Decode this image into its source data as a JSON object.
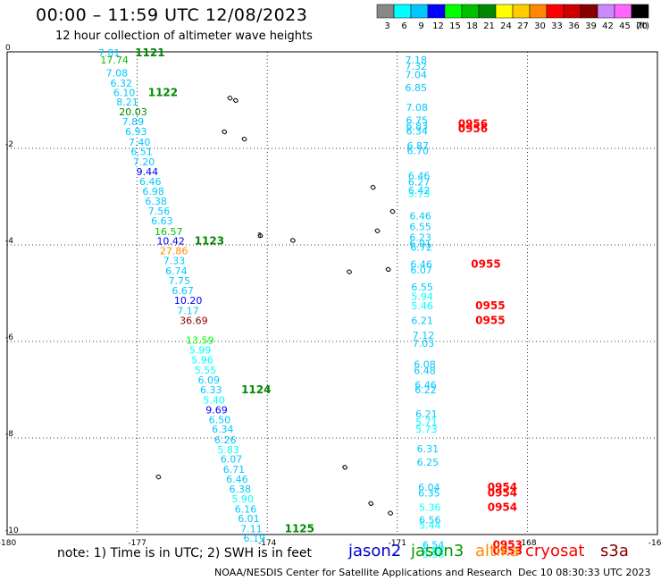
{
  "header": {
    "title": "00:00 – 11:59 UTC 12/08/2023",
    "subtitle": "12 hour collection of altimeter wave heights"
  },
  "legend": {
    "unit": "(ft)",
    "bins": [
      {
        "label": "3",
        "color": "#888888"
      },
      {
        "label": "6",
        "color": "#00ffff"
      },
      {
        "label": "9",
        "color": "#00c8ff"
      },
      {
        "label": "12",
        "color": "#0000ff"
      },
      {
        "label": "15",
        "color": "#00ff00"
      },
      {
        "label": "18",
        "color": "#00c000"
      },
      {
        "label": "21",
        "color": "#008800"
      },
      {
        "label": "24",
        "color": "#ffff00"
      },
      {
        "label": "27",
        "color": "#ffcc00"
      },
      {
        "label": "30",
        "color": "#ff8800"
      },
      {
        "label": "33",
        "color": "#ff0000"
      },
      {
        "label": "36",
        "color": "#cc0000"
      },
      {
        "label": "39",
        "color": "#880000"
      },
      {
        "label": "42",
        "color": "#cc88ff"
      },
      {
        "label": "45",
        "color": "#ff66ff"
      },
      {
        "label": "70",
        "color": "#000000"
      }
    ]
  },
  "axes": {
    "lon_ticks": [
      "-180",
      "-177",
      "-174",
      "-171",
      "-168",
      "-165"
    ],
    "lat_ticks": [
      "0",
      "-2",
      "-4",
      "-6",
      "-8",
      "-10"
    ]
  },
  "tracks": [
    {
      "name": "west",
      "points": [
        {
          "lat": -0.0,
          "lon": -177.9,
          "swh": "7.81"
        },
        {
          "lat": -0.15,
          "lon": -177.85,
          "swh": "17.74"
        },
        {
          "lat": -0.42,
          "lon": -177.72,
          "swh": "7.08"
        },
        {
          "lat": -0.63,
          "lon": -177.62,
          "swh": "6.32"
        },
        {
          "lat": -0.82,
          "lon": -177.55,
          "swh": "6.10"
        },
        {
          "lat": -1.02,
          "lon": -177.48,
          "swh": "8.21"
        },
        {
          "lat": -1.22,
          "lon": -177.42,
          "swh": "20.03"
        },
        {
          "lat": -1.43,
          "lon": -177.35,
          "swh": "7.89"
        },
        {
          "lat": -1.63,
          "lon": -177.28,
          "swh": "6.93"
        },
        {
          "lat": -1.85,
          "lon": -177.2,
          "swh": "7.40"
        },
        {
          "lat": -2.05,
          "lon": -177.15,
          "swh": "6.51"
        },
        {
          "lat": -2.26,
          "lon": -177.1,
          "swh": "7.20"
        },
        {
          "lat": -2.46,
          "lon": -177.02,
          "swh": "9.44"
        },
        {
          "lat": -2.67,
          "lon": -176.95,
          "swh": "6.46"
        },
        {
          "lat": -2.87,
          "lon": -176.88,
          "swh": "6.98"
        },
        {
          "lat": -3.07,
          "lon": -176.82,
          "swh": "6.38"
        },
        {
          "lat": -3.28,
          "lon": -176.75,
          "swh": "7.56"
        },
        {
          "lat": -3.48,
          "lon": -176.68,
          "swh": "6.63"
        },
        {
          "lat": -3.7,
          "lon": -176.6,
          "swh": "16.57"
        },
        {
          "lat": -3.9,
          "lon": -176.55,
          "swh": "10.42"
        },
        {
          "lat": -4.1,
          "lon": -176.48,
          "swh": "27.86"
        },
        {
          "lat": -4.31,
          "lon": -176.4,
          "swh": "7.33"
        },
        {
          "lat": -4.52,
          "lon": -176.35,
          "swh": "6.74"
        },
        {
          "lat": -4.72,
          "lon": -176.28,
          "swh": "7.75"
        },
        {
          "lat": -4.93,
          "lon": -176.2,
          "swh": "6.67"
        },
        {
          "lat": -5.13,
          "lon": -176.15,
          "swh": "10.20"
        },
        {
          "lat": -5.34,
          "lon": -176.08,
          "swh": "7.17"
        },
        {
          "lat": -5.55,
          "lon": -176.02,
          "swh": "36.69"
        },
        {
          "lat": -5.95,
          "lon": -175.88,
          "swh": "13.59"
        },
        {
          "lat": -6.16,
          "lon": -175.8,
          "swh": "5.99"
        },
        {
          "lat": -6.36,
          "lon": -175.75,
          "swh": "5.96"
        },
        {
          "lat": -6.57,
          "lon": -175.68,
          "swh": "5.55"
        },
        {
          "lat": -6.78,
          "lon": -175.6,
          "swh": "6.09"
        },
        {
          "lat": -6.98,
          "lon": -175.55,
          "swh": "6.33"
        },
        {
          "lat": -7.19,
          "lon": -175.48,
          "swh": "5.40"
        },
        {
          "lat": -7.4,
          "lon": -175.42,
          "swh": "9.69"
        },
        {
          "lat": -7.6,
          "lon": -175.35,
          "swh": "6.50"
        },
        {
          "lat": -7.8,
          "lon": -175.28,
          "swh": "6.34"
        },
        {
          "lat": -8.02,
          "lon": -175.22,
          "swh": "6.26"
        },
        {
          "lat": -8.22,
          "lon": -175.15,
          "swh": "5.83"
        },
        {
          "lat": -8.42,
          "lon": -175.08,
          "swh": "6.07"
        },
        {
          "lat": -8.63,
          "lon": -175.02,
          "swh": "6.71"
        },
        {
          "lat": -8.83,
          "lon": -174.95,
          "swh": "6.46"
        },
        {
          "lat": -9.04,
          "lon": -174.88,
          "swh": "6.38"
        },
        {
          "lat": -9.24,
          "lon": -174.82,
          "swh": "5.90"
        },
        {
          "lat": -9.45,
          "lon": -174.75,
          "swh": "6.16"
        },
        {
          "lat": -9.65,
          "lon": -174.68,
          "swh": "6.01"
        },
        {
          "lat": -9.86,
          "lon": -174.62,
          "swh": "7.11"
        },
        {
          "lat": -10.06,
          "lon": -174.55,
          "swh": "6.19"
        }
      ]
    },
    {
      "name": "east",
      "points": [
        {
          "lat": -0.15,
          "lon": -170.82,
          "swh": "7.18"
        },
        {
          "lat": -0.28,
          "lon": -170.82,
          "swh": "7.32"
        },
        {
          "lat": -0.45,
          "lon": -170.82,
          "swh": "7.04"
        },
        {
          "lat": -0.72,
          "lon": -170.82,
          "swh": "6.85"
        },
        {
          "lat": -1.13,
          "lon": -170.8,
          "swh": "7.08"
        },
        {
          "lat": -1.4,
          "lon": -170.8,
          "swh": "6.75"
        },
        {
          "lat": -1.52,
          "lon": -170.8,
          "swh": "6.83"
        },
        {
          "lat": -1.62,
          "lon": -170.8,
          "swh": "6.34"
        },
        {
          "lat": -1.93,
          "lon": -170.78,
          "swh": "6.87"
        },
        {
          "lat": -2.03,
          "lon": -170.78,
          "swh": "6.70"
        },
        {
          "lat": -2.55,
          "lon": -170.75,
          "swh": "6.46"
        },
        {
          "lat": -2.68,
          "lon": -170.75,
          "swh": "6.27"
        },
        {
          "lat": -2.85,
          "lon": -170.75,
          "swh": "6.42"
        },
        {
          "lat": -2.92,
          "lon": -170.75,
          "swh": "5.73"
        },
        {
          "lat": -3.38,
          "lon": -170.72,
          "swh": "6.46"
        },
        {
          "lat": -3.6,
          "lon": -170.72,
          "swh": "6.55"
        },
        {
          "lat": -3.82,
          "lon": -170.72,
          "swh": "6.23"
        },
        {
          "lat": -3.95,
          "lon": -170.72,
          "swh": "6.01"
        },
        {
          "lat": -4.03,
          "lon": -170.7,
          "swh": "6.72"
        },
        {
          "lat": -4.38,
          "lon": -170.7,
          "swh": "6.46"
        },
        {
          "lat": -4.5,
          "lon": -170.7,
          "swh": "6.07"
        },
        {
          "lat": -4.85,
          "lon": -170.68,
          "swh": "6.55"
        },
        {
          "lat": -5.05,
          "lon": -170.68,
          "swh": "5.94"
        },
        {
          "lat": -5.24,
          "lon": -170.68,
          "swh": "5.46"
        },
        {
          "lat": -5.55,
          "lon": -170.68,
          "swh": "6.21"
        },
        {
          "lat": -5.85,
          "lon": -170.65,
          "swh": "7.12"
        },
        {
          "lat": -6.02,
          "lon": -170.65,
          "swh": "7.03"
        },
        {
          "lat": -6.45,
          "lon": -170.62,
          "swh": "6.08"
        },
        {
          "lat": -6.58,
          "lon": -170.62,
          "swh": "6.48"
        },
        {
          "lat": -6.88,
          "lon": -170.6,
          "swh": "6.46"
        },
        {
          "lat": -6.98,
          "lon": -170.6,
          "swh": "6.22"
        },
        {
          "lat": -7.48,
          "lon": -170.58,
          "swh": "6.21"
        },
        {
          "lat": -7.65,
          "lon": -170.58,
          "swh": "5.71"
        },
        {
          "lat": -7.8,
          "lon": -170.58,
          "swh": "5.73"
        },
        {
          "lat": -8.2,
          "lon": -170.55,
          "swh": "6.31"
        },
        {
          "lat": -8.48,
          "lon": -170.55,
          "swh": "6.25"
        },
        {
          "lat": -9.0,
          "lon": -170.52,
          "swh": "6.04"
        },
        {
          "lat": -9.12,
          "lon": -170.52,
          "swh": "6.35"
        },
        {
          "lat": -9.42,
          "lon": -170.5,
          "swh": "5.36"
        },
        {
          "lat": -9.68,
          "lon": -170.5,
          "swh": "6.56"
        },
        {
          "lat": -9.79,
          "lon": -170.5,
          "swh": "5.44"
        },
        {
          "lat": -10.19,
          "lon": -170.42,
          "swh": "6.54"
        },
        {
          "lat": -10.29,
          "lon": -170.42,
          "swh": "5.60"
        },
        {
          "lat": -10.39,
          "lon": -170.42,
          "swh": "5.96"
        }
      ]
    }
  ],
  "pass_times": [
    {
      "lat": -0.0,
      "lon": -177.05,
      "text": "1121",
      "color": "#008800"
    },
    {
      "lat": -0.82,
      "lon": -176.75,
      "text": "1122",
      "color": "#008800"
    },
    {
      "lat": -3.9,
      "lon": -175.68,
      "text": "1123",
      "color": "#008800"
    },
    {
      "lat": -6.98,
      "lon": -174.6,
      "text": "1124",
      "color": "#008800"
    },
    {
      "lat": -9.86,
      "lon": -173.6,
      "text": "1125",
      "color": "#008800"
    },
    {
      "lat": -1.47,
      "lon": -169.6,
      "text": "0956",
      "color": "#ff0000"
    },
    {
      "lat": -1.57,
      "lon": -169.6,
      "text": "0956",
      "color": "#ff0000"
    },
    {
      "lat": -4.38,
      "lon": -169.3,
      "text": "0955",
      "color": "#ff0000"
    },
    {
      "lat": -5.24,
      "lon": -169.2,
      "text": "0955",
      "color": "#ff0000"
    },
    {
      "lat": -5.55,
      "lon": -169.2,
      "text": "0955",
      "color": "#ff0000"
    },
    {
      "lat": -9.0,
      "lon": -168.92,
      "text": "0954",
      "color": "#ff0000"
    },
    {
      "lat": -9.12,
      "lon": -168.92,
      "text": "0954",
      "color": "#ff0000"
    },
    {
      "lat": -9.42,
      "lon": -168.92,
      "text": "0954",
      "color": "#ff0000"
    },
    {
      "lat": -10.19,
      "lon": -168.8,
      "text": "0953",
      "color": "#ff0000"
    },
    {
      "lat": -10.32,
      "lon": -168.8,
      "text": "0953",
      "color": "#ff0000"
    }
  ],
  "islands": [
    {
      "lat": -0.95,
      "lon": -174.85,
      "label": ""
    },
    {
      "lat": -1.0,
      "lon": -174.72,
      "label": ""
    },
    {
      "lat": -1.65,
      "lon": -174.98,
      "label": ""
    },
    {
      "lat": -1.8,
      "lon": -174.52,
      "label": ""
    },
    {
      "lat": -3.8,
      "lon": -174.15,
      "label": "3"
    },
    {
      "lat": -3.9,
      "lon": -173.4,
      "label": ""
    },
    {
      "lat": -2.8,
      "lon": -171.55,
      "label": ""
    },
    {
      "lat": -3.3,
      "lon": -171.1,
      "label": ""
    },
    {
      "lat": -3.7,
      "lon": -171.45,
      "label": ""
    },
    {
      "lat": -4.55,
      "lon": -172.1,
      "label": ""
    },
    {
      "lat": -4.5,
      "lon": -171.2,
      "label": ""
    },
    {
      "lat": -8.6,
      "lon": -172.2,
      "label": ""
    },
    {
      "lat": -8.8,
      "lon": -176.5,
      "label": ""
    },
    {
      "lat": -9.35,
      "lon": -171.6,
      "label": ""
    },
    {
      "lat": -9.55,
      "lon": -171.15,
      "label": ""
    }
  ],
  "footer": {
    "note": "note:  1) Time is in UTC;  2) SWH is in feet",
    "satellites": [
      {
        "name": "jason2",
        "color": "#0000cc"
      },
      {
        "name": "jason3",
        "color": "#009900"
      },
      {
        "name": "altika",
        "color": "#ff8800"
      },
      {
        "name": "cryosat",
        "color": "#ff0000"
      },
      {
        "name": "s3a",
        "color": "#880000"
      }
    ],
    "credit": "NOAA/NESDIS Center for Satellite Applications and Research",
    "generated": "Dec 10 08:30:33 UTC 2023"
  }
}
